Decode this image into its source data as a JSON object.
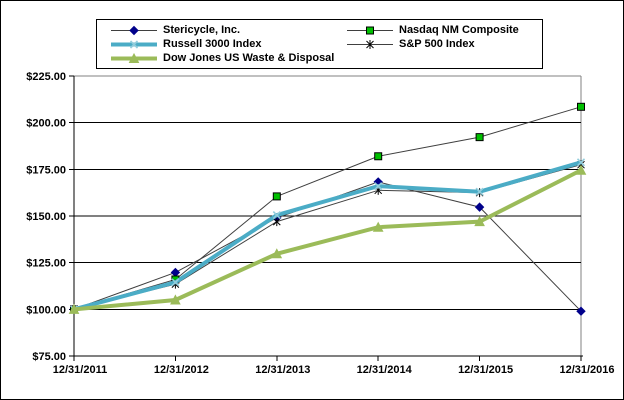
{
  "chart_data": {
    "type": "line",
    "title": "",
    "xlabel": "",
    "ylabel": "",
    "categories": [
      "12/31/2011",
      "12/31/2012",
      "12/31/2013",
      "12/31/2014",
      "12/31/2015",
      "12/31/2016"
    ],
    "ylim": [
      75,
      225
    ],
    "grid": true,
    "legend_position": "top-center",
    "y_ticks": [
      {
        "label": "$225.00",
        "value": 225
      },
      {
        "label": "$200.00",
        "value": 200
      },
      {
        "label": "$175.00",
        "value": 175
      },
      {
        "label": "$150.00",
        "value": 150
      },
      {
        "label": "$125.00",
        "value": 125
      },
      {
        "label": "$100.00",
        "value": 100
      },
      {
        "label": "$75.00",
        "value": 75
      }
    ],
    "series": [
      {
        "name": "Stericycle, Inc.",
        "values": [
          100,
          119.75,
          149.0,
          168.25,
          154.75,
          99.0
        ],
        "line_color": "#3f3f3f",
        "line_width": 1,
        "marker": "diamond",
        "marker_color": "#00008b",
        "marker_stroke": "#00008b"
      },
      {
        "name": "Nasdaq NM Composite",
        "values": [
          100,
          116.0,
          160.5,
          182.0,
          192.25,
          208.5
        ],
        "line_color": "#3f3f3f",
        "line_width": 1,
        "marker": "square",
        "marker_color": "#00c000",
        "marker_stroke": "#000000"
      },
      {
        "name": "Russell 3000 Index",
        "values": [
          100,
          114.5,
          150.5,
          166.0,
          163.0,
          178.75
        ],
        "line_color": "#4bacc6",
        "line_width": 4,
        "marker": "x",
        "marker_color": "#92cddc",
        "marker_stroke": "#92cddc"
      },
      {
        "name": "S&P 500 Index",
        "values": [
          100,
          113.5,
          147.0,
          163.75,
          162.5,
          177.5
        ],
        "line_color": "#404040",
        "line_width": 1,
        "marker": "star",
        "marker_color": "#000000",
        "marker_stroke": "#000000"
      },
      {
        "name": "Dow Jones US Waste & Disposal",
        "values": [
          100,
          105.0,
          129.75,
          144.0,
          147.0,
          174.5
        ],
        "line_color": "#9bbb59",
        "line_width": 4,
        "marker": "triangle",
        "marker_color": "#9bbb59",
        "marker_stroke": "#9bbb59"
      }
    ],
    "axis_color": "#000000",
    "plot_border_color": "#808080",
    "draw_order": [
      0,
      1,
      3,
      2,
      4
    ]
  }
}
